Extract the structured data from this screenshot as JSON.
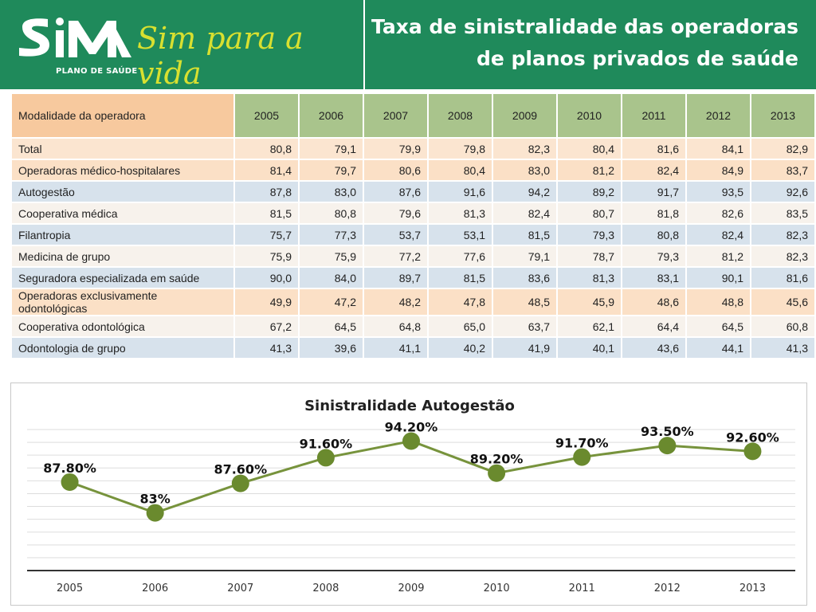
{
  "header": {
    "brand_logo_text": "SIM",
    "brand_sub": "PLANO DE SAÚDE",
    "slogan": "Sim para a vida",
    "title_line1": "Taxa de sinistralidade das operadoras",
    "title_line2": "de planos privados de saúde",
    "colors": {
      "header_bg": "#1f8a5b",
      "slogan": "#d8e030"
    }
  },
  "table": {
    "header_label": "Modalidade da operadora",
    "years": [
      "2005",
      "2006",
      "2007",
      "2008",
      "2009",
      "2010",
      "2011",
      "2012",
      "2013"
    ],
    "rows": [
      {
        "label": "Total",
        "values": [
          "80,8",
          "79,1",
          "79,9",
          "79,8",
          "82,3",
          "80,4",
          "81,6",
          "84,1",
          "82,9"
        ]
      },
      {
        "label": "Operadoras médico-hospitalares",
        "values": [
          "81,4",
          "79,7",
          "80,6",
          "80,4",
          "83,0",
          "81,2",
          "82,4",
          "84,9",
          "83,7"
        ]
      },
      {
        "label": "Autogestão",
        "values": [
          "87,8",
          "83,0",
          "87,6",
          "91,6",
          "94,2",
          "89,2",
          "91,7",
          "93,5",
          "92,6"
        ]
      },
      {
        "label": "Cooperativa médica",
        "values": [
          "81,5",
          "80,8",
          "79,6",
          "81,3",
          "82,4",
          "80,7",
          "81,8",
          "82,6",
          "83,5"
        ]
      },
      {
        "label": "Filantropia",
        "values": [
          "75,7",
          "77,3",
          "53,7",
          "53,1",
          "81,5",
          "79,3",
          "80,8",
          "82,4",
          "82,3"
        ]
      },
      {
        "label": "Medicina de grupo",
        "values": [
          "75,9",
          "75,9",
          "77,2",
          "77,6",
          "79,1",
          "78,7",
          "79,3",
          "81,2",
          "82,3"
        ]
      },
      {
        "label": "Seguradora especializada em saúde",
        "values": [
          "90,0",
          "84,0",
          "89,7",
          "81,5",
          "83,6",
          "81,3",
          "83,1",
          "90,1",
          "81,6"
        ]
      },
      {
        "label": "Operadoras exclusivamente odontológicas",
        "values": [
          "49,9",
          "47,2",
          "48,2",
          "47,8",
          "48,5",
          "45,9",
          "48,6",
          "48,8",
          "45,6"
        ]
      },
      {
        "label": "Cooperativa odontológica",
        "values": [
          "67,2",
          "64,5",
          "64,8",
          "65,0",
          "63,7",
          "62,1",
          "64,4",
          "64,5",
          "60,8"
        ]
      },
      {
        "label": "Odontologia de grupo",
        "values": [
          "41,3",
          "39,6",
          "41,1",
          "40,2",
          "41,9",
          "40,1",
          "43,6",
          "44,1",
          "41,3"
        ]
      }
    ]
  },
  "chart_data": {
    "type": "line",
    "title": "Sinistralidade Autogestão",
    "categories": [
      "2005",
      "2006",
      "2007",
      "2008",
      "2009",
      "2010",
      "2011",
      "2012",
      "2013"
    ],
    "values": [
      87.8,
      83,
      87.6,
      91.6,
      94.2,
      89.2,
      91.7,
      93.5,
      92.6
    ],
    "data_labels": [
      "87.80%",
      "83%",
      "87.60%",
      "91.60%",
      "94.20%",
      "89.20%",
      "91.70%",
      "93.50%",
      "92.60%"
    ],
    "ylim": [
      74,
      96
    ],
    "grid": true,
    "line_color": "#77933c",
    "marker_color": "#6a8a2e"
  }
}
